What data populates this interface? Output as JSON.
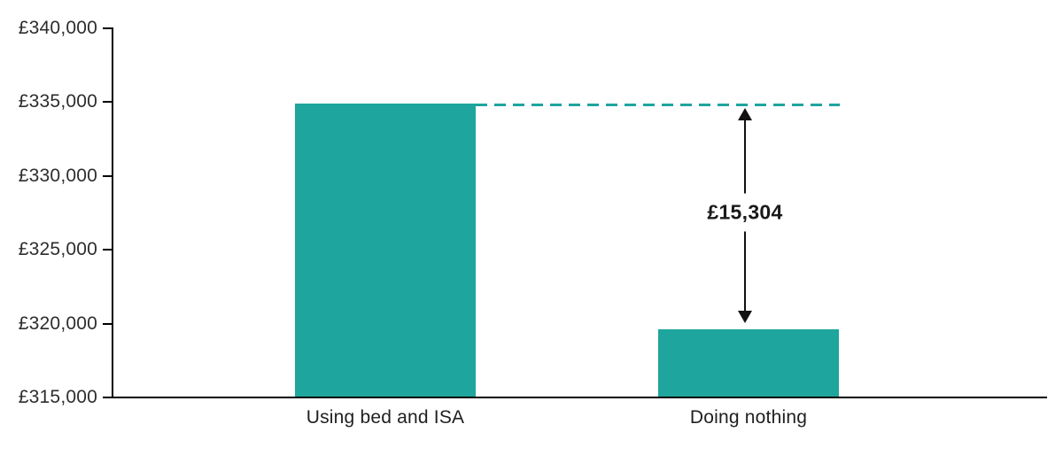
{
  "chart_data": {
    "type": "bar",
    "title": "",
    "xlabel": "",
    "ylabel": "",
    "categories": [
      "Using bed and ISA",
      "Doing nothing"
    ],
    "values": [
      334856,
      319552
    ],
    "ylim": [
      315000,
      340000
    ],
    "ytick_step": 5000,
    "yticks": [
      {
        "value": 315000,
        "label": "£315,000"
      },
      {
        "value": 320000,
        "label": "£320,000"
      },
      {
        "value": 325000,
        "label": "£325,000"
      },
      {
        "value": 330000,
        "label": "£330,000"
      },
      {
        "value": 335000,
        "label": "£335,000"
      },
      {
        "value": 340000,
        "label": "£340,000"
      }
    ],
    "annotation": {
      "kind": "difference-arrow",
      "label": "£15,304",
      "from_value": 334856,
      "to_value": 319552
    },
    "colors": {
      "bar": "#1ea59d",
      "dashed_line": "#1ea59d",
      "axis": "#000000",
      "tick_text": "#2d2d2d",
      "category_text": "#1f1f1f",
      "annotation_text": "#1a1a1a"
    },
    "grid": false,
    "legend": "none"
  }
}
